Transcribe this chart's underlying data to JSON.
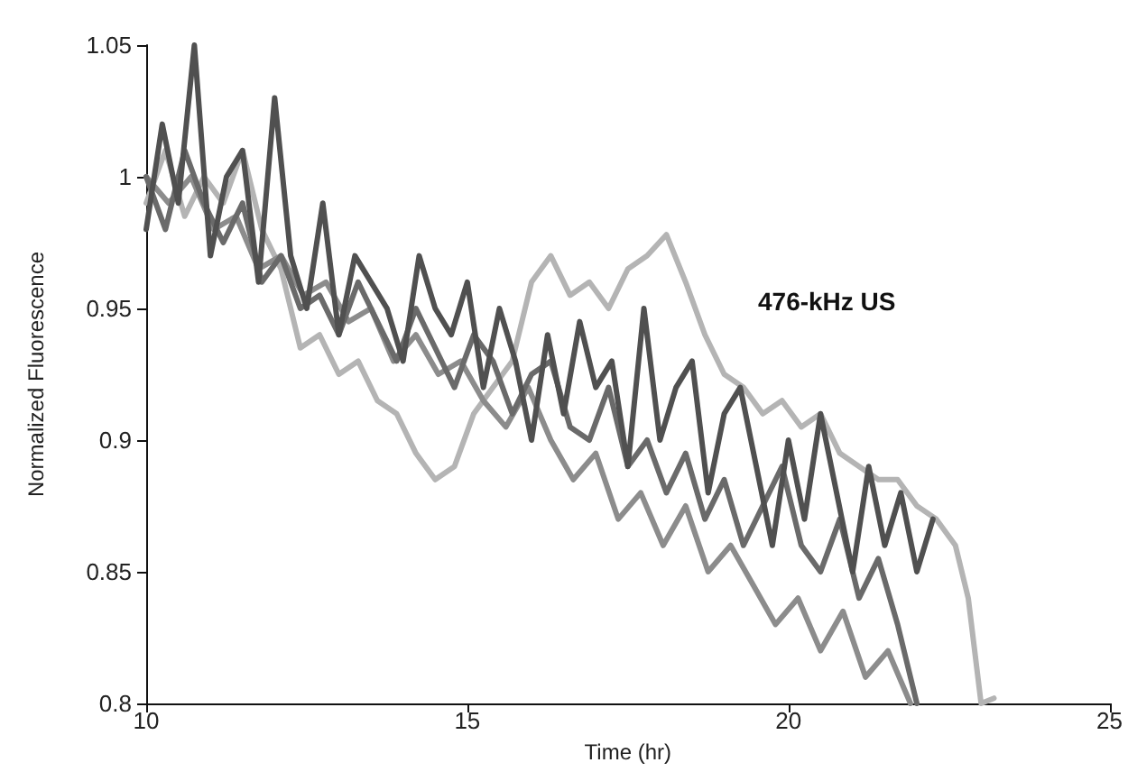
{
  "chart_data": {
    "type": "line",
    "xlabel": "Time (hr)",
    "ylabel": "Normalized Fluorescence",
    "annotations": [
      "476-kHz US"
    ],
    "xlim": [
      10,
      25
    ],
    "xticks": [
      10,
      15,
      20,
      25
    ],
    "ylim": [
      0.8,
      1.05
    ],
    "yticks": [
      0.8,
      0.85,
      0.9,
      0.95,
      1,
      1.05
    ],
    "grid": false,
    "marker": "none",
    "line_style": "solid",
    "series": [
      {
        "color": "#b4b4b4",
        "x": [
          10,
          10.3,
          10.6,
          10.9,
          11.2,
          11.5,
          11.8,
          12.1,
          12.4,
          12.7,
          13,
          13.3,
          13.6,
          13.9,
          14.2,
          14.5,
          14.8,
          15.1,
          15.4,
          15.7,
          16,
          16.3,
          16.6,
          16.9,
          17.2,
          17.5,
          17.8,
          18.1,
          18.4,
          18.7,
          19,
          19.3,
          19.6,
          19.9,
          20.2,
          20.5,
          20.8,
          21.1,
          21.4,
          21.7,
          22,
          22.3,
          22.6,
          22.8,
          23,
          23.2
        ],
        "values": [
          0.99,
          1.01,
          0.985,
          1.0,
          0.99,
          1.01,
          0.98,
          0.965,
          0.935,
          0.94,
          0.925,
          0.93,
          0.915,
          0.91,
          0.895,
          0.885,
          0.89,
          0.91,
          0.92,
          0.93,
          0.96,
          0.97,
          0.955,
          0.96,
          0.95,
          0.965,
          0.97,
          0.978,
          0.96,
          0.94,
          0.925,
          0.92,
          0.91,
          0.915,
          0.905,
          0.91,
          0.895,
          0.89,
          0.885,
          0.885,
          0.875,
          0.87,
          0.86,
          0.84,
          0.8,
          0.802
        ]
      },
      {
        "color": "#8c8c8c",
        "x": [
          10,
          10.35,
          10.7,
          11.05,
          11.4,
          11.75,
          12.1,
          12.45,
          12.8,
          13.15,
          13.5,
          13.85,
          14.2,
          14.55,
          14.9,
          15.25,
          15.6,
          15.95,
          16.3,
          16.65,
          17,
          17.35,
          17.7,
          18.05,
          18.4,
          18.75,
          19.1,
          19.45,
          19.8,
          20.15,
          20.5,
          20.85,
          21.2,
          21.55,
          21.9
        ],
        "values": [
          1.0,
          0.99,
          1.0,
          0.98,
          0.985,
          0.965,
          0.97,
          0.955,
          0.96,
          0.945,
          0.95,
          0.93,
          0.94,
          0.925,
          0.93,
          0.915,
          0.905,
          0.92,
          0.9,
          0.885,
          0.895,
          0.87,
          0.88,
          0.86,
          0.875,
          0.85,
          0.86,
          0.845,
          0.83,
          0.84,
          0.82,
          0.835,
          0.81,
          0.82,
          0.8
        ]
      },
      {
        "color": "#6a6a6a",
        "x": [
          10,
          10.3,
          10.6,
          10.9,
          11.2,
          11.5,
          11.8,
          12.1,
          12.4,
          12.7,
          13,
          13.3,
          13.6,
          13.9,
          14.2,
          14.5,
          14.8,
          15.1,
          15.4,
          15.7,
          16,
          16.3,
          16.6,
          16.9,
          17.2,
          17.5,
          17.8,
          18.1,
          18.4,
          18.7,
          19,
          19.3,
          19.6,
          19.9,
          20.2,
          20.5,
          20.8,
          21.1,
          21.4,
          21.7,
          22
        ],
        "values": [
          1.0,
          0.98,
          1.01,
          0.99,
          0.975,
          0.99,
          0.96,
          0.97,
          0.95,
          0.955,
          0.94,
          0.96,
          0.945,
          0.93,
          0.95,
          0.935,
          0.92,
          0.94,
          0.93,
          0.91,
          0.925,
          0.93,
          0.905,
          0.9,
          0.92,
          0.89,
          0.9,
          0.88,
          0.895,
          0.87,
          0.885,
          0.86,
          0.875,
          0.89,
          0.86,
          0.85,
          0.87,
          0.84,
          0.855,
          0.83,
          0.8
        ]
      },
      {
        "color": "#505050",
        "x": [
          10,
          10.25,
          10.5,
          10.75,
          11,
          11.25,
          11.5,
          11.75,
          12,
          12.25,
          12.5,
          12.75,
          13,
          13.25,
          13.5,
          13.75,
          14,
          14.25,
          14.5,
          14.75,
          15,
          15.25,
          15.5,
          15.75,
          16,
          16.25,
          16.5,
          16.75,
          17,
          17.25,
          17.5,
          17.75,
          18,
          18.25,
          18.5,
          18.75,
          19,
          19.25,
          19.5,
          19.75,
          20,
          20.25,
          20.5,
          20.75,
          21,
          21.25,
          21.5,
          21.75,
          22,
          22.25
        ],
        "values": [
          0.98,
          1.02,
          0.99,
          1.05,
          0.97,
          1.0,
          1.01,
          0.96,
          1.03,
          0.97,
          0.95,
          0.99,
          0.94,
          0.97,
          0.96,
          0.95,
          0.93,
          0.97,
          0.95,
          0.94,
          0.96,
          0.92,
          0.95,
          0.93,
          0.9,
          0.94,
          0.91,
          0.945,
          0.92,
          0.93,
          0.89,
          0.95,
          0.9,
          0.92,
          0.93,
          0.88,
          0.91,
          0.92,
          0.89,
          0.86,
          0.9,
          0.87,
          0.91,
          0.88,
          0.85,
          0.89,
          0.86,
          0.88,
          0.85,
          0.87
        ]
      }
    ]
  }
}
